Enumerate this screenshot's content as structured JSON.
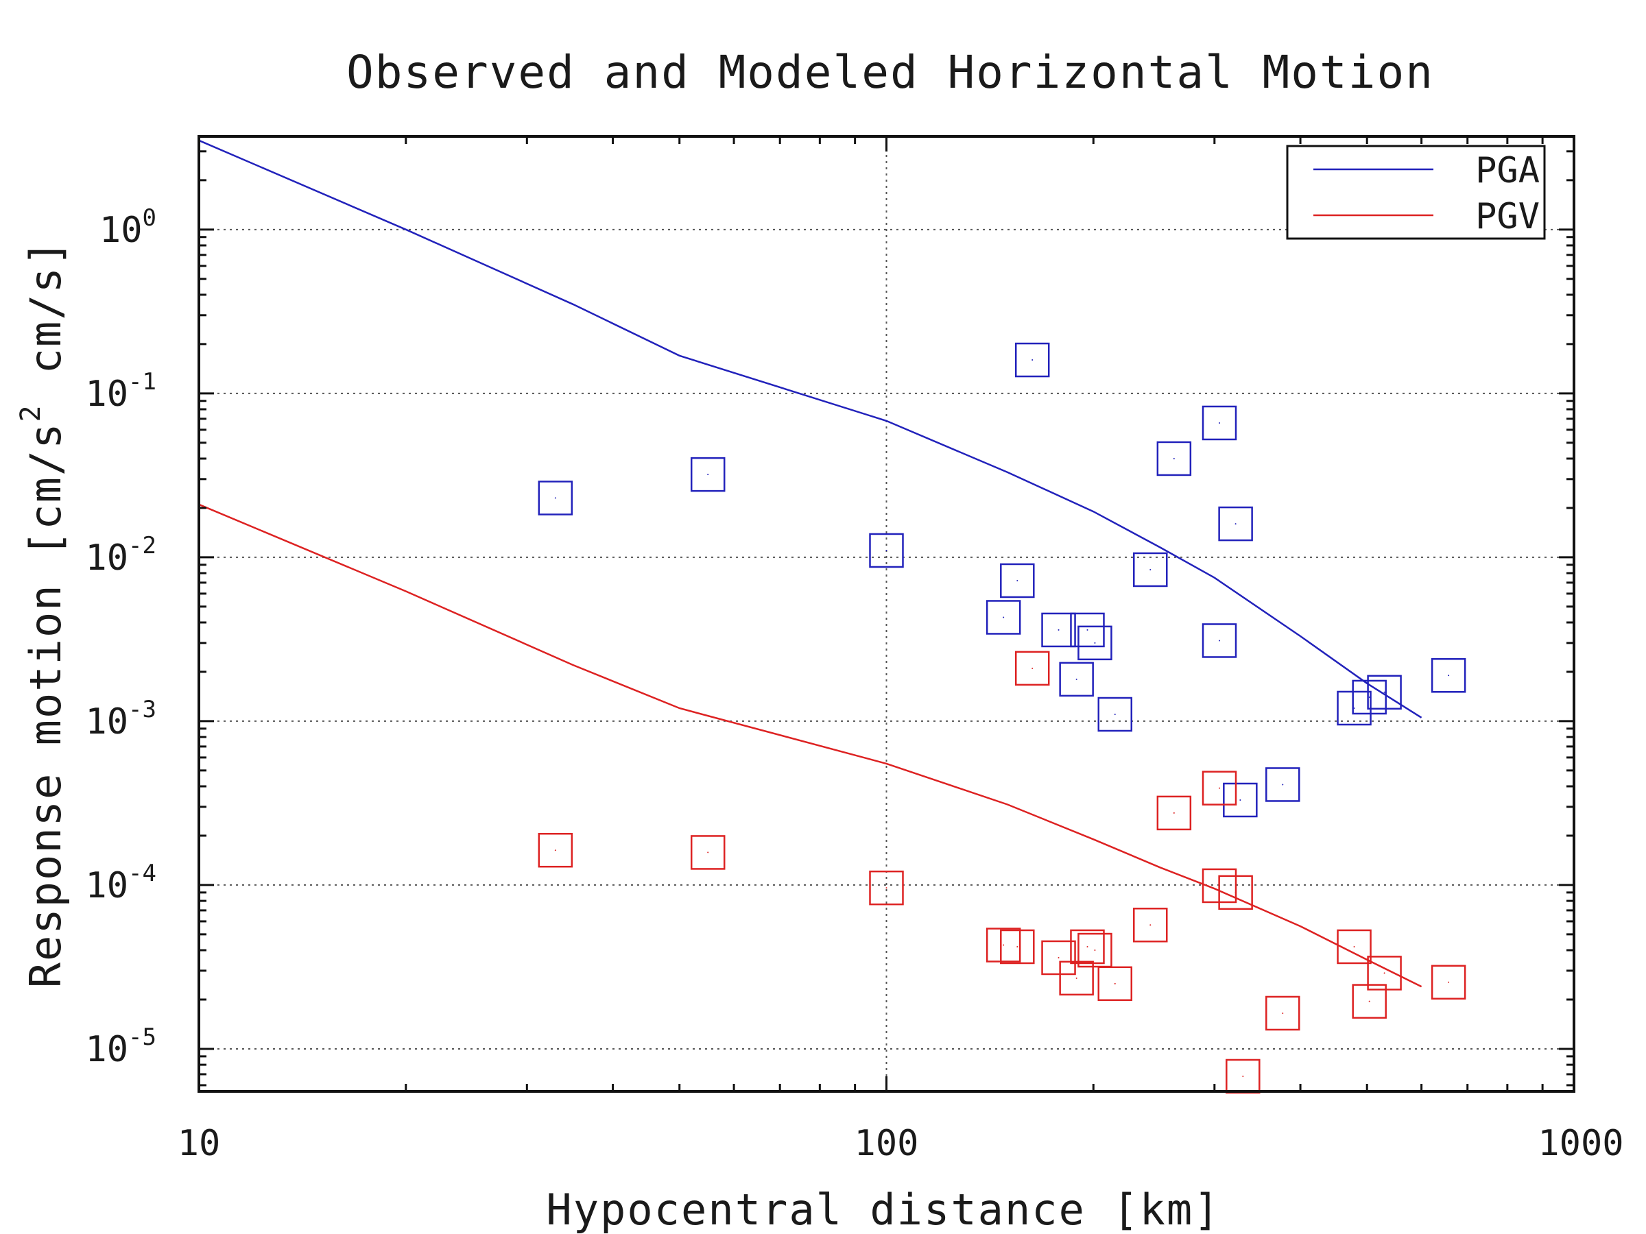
{
  "chart_data": {
    "type": "scatter",
    "title": "Observed and Modeled Horizontal Motion",
    "xlabel": "Hypocentral distance [km]",
    "ylabel": {
      "main": "Response motion [cm/s",
      "superscript": "2",
      "unit2": "cm/s]"
    },
    "x_scale": "log",
    "y_scale": "log",
    "xlim": [
      10,
      1000
    ],
    "ylim": [
      5.5e-06,
      3.7
    ],
    "x_ticks": [
      {
        "value": 10,
        "label": "10"
      },
      {
        "value": 100,
        "label": "100"
      },
      {
        "value": 1000,
        "label": "1000"
      }
    ],
    "y_ticks": [
      {
        "value": 1,
        "base": "10",
        "exp": "0"
      },
      {
        "value": 0.1,
        "base": "10",
        "exp": "-1"
      },
      {
        "value": 0.01,
        "base": "10",
        "exp": "-2"
      },
      {
        "value": 0.001,
        "base": "10",
        "exp": "-3"
      },
      {
        "value": 0.0001,
        "base": "10",
        "exp": "-4"
      },
      {
        "value": 1e-05,
        "base": "10",
        "exp": "-5"
      }
    ],
    "grid": true,
    "legend_position": "top-right",
    "series": [
      {
        "name": "PGA",
        "color": "#2222bb",
        "line": {
          "x": [
            10,
            20,
            35,
            50,
            100,
            150,
            200,
            250,
            300,
            400,
            500,
            600
          ],
          "y": [
            3.5,
            1.0,
            0.35,
            0.17,
            0.068,
            0.033,
            0.019,
            0.0115,
            0.0075,
            0.0033,
            0.0017,
            0.00105
          ]
        },
        "observed": {
          "x": [
            33,
            55,
            100,
            163,
            155,
            148,
            178,
            189,
            196,
            201,
            215,
            242,
            262,
            305,
            305,
            322,
            327,
            377,
            479,
            504,
            530,
            657
          ],
          "y": [
            0.023,
            0.032,
            0.011,
            0.16,
            0.0072,
            0.0043,
            0.0036,
            0.0018,
            0.0036,
            0.003,
            0.0011,
            0.0084,
            0.04,
            0.066,
            0.0031,
            0.016,
            0.00033,
            0.00041,
            0.0012,
            0.0014,
            0.0015,
            0.0019
          ]
        }
      },
      {
        "name": "PGV",
        "color": "#dd2222",
        "line": {
          "x": [
            10,
            20,
            35,
            50,
            100,
            150,
            200,
            250,
            300,
            400,
            500,
            600
          ],
          "y": [
            0.021,
            0.0062,
            0.0022,
            0.0012,
            0.00055,
            0.00031,
            0.00019,
            0.000128,
            9.5e-05,
            5.6e-05,
            3.5e-05,
            2.4e-05
          ]
        },
        "observed": {
          "x": [
            33,
            55,
            100,
            163,
            155,
            148,
            178,
            189,
            196,
            201,
            215,
            242,
            262,
            305,
            305,
            322,
            330,
            377,
            479,
            504,
            530,
            657
          ],
          "y": [
            0.000163,
            0.000158,
            9.6e-05,
            0.0021,
            4.2e-05,
            4.3e-05,
            3.6e-05,
            2.7e-05,
            4.2e-05,
            4e-05,
            2.5e-05,
            5.7e-05,
            0.000275,
            0.00039,
            9.9e-05,
            9e-05,
            6.8e-06,
            1.65e-05,
            4.2e-05,
            1.95e-05,
            2.9e-05,
            2.55e-05
          ]
        }
      }
    ]
  }
}
